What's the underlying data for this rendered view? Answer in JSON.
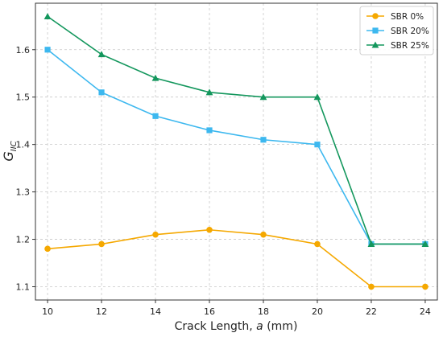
{
  "chart_data": {
    "type": "line",
    "xlabel": "Crack Length, a (mm)",
    "ylabel": "GIIC",
    "x": [
      10,
      12,
      14,
      16,
      18,
      20,
      22,
      24
    ],
    "xticks": [
      "10",
      "12",
      "14",
      "16",
      "18",
      "20",
      "22",
      "24"
    ],
    "yticks": [
      "1.1",
      "1.2",
      "1.3",
      "1.4",
      "1.5",
      "1.6"
    ],
    "xlim": [
      9.55,
      24.45
    ],
    "ylim": [
      1.072,
      1.698
    ],
    "grid": true,
    "legend_position": "top-right",
    "series": [
      {
        "name": "SBR 0%",
        "color": "#f5a800",
        "marker": "circle",
        "values": [
          1.18,
          1.19,
          1.21,
          1.22,
          1.21,
          1.19,
          1.1,
          1.1
        ]
      },
      {
        "name": "SBR 20%",
        "color": "#3db8ef",
        "marker": "square",
        "values": [
          1.6,
          1.51,
          1.46,
          1.43,
          1.41,
          1.4,
          1.19,
          1.19
        ]
      },
      {
        "name": "SBR 25%",
        "color": "#14975d",
        "marker": "triangle",
        "values": [
          1.67,
          1.59,
          1.54,
          1.51,
          1.5,
          1.5,
          1.19,
          1.19
        ]
      }
    ]
  }
}
